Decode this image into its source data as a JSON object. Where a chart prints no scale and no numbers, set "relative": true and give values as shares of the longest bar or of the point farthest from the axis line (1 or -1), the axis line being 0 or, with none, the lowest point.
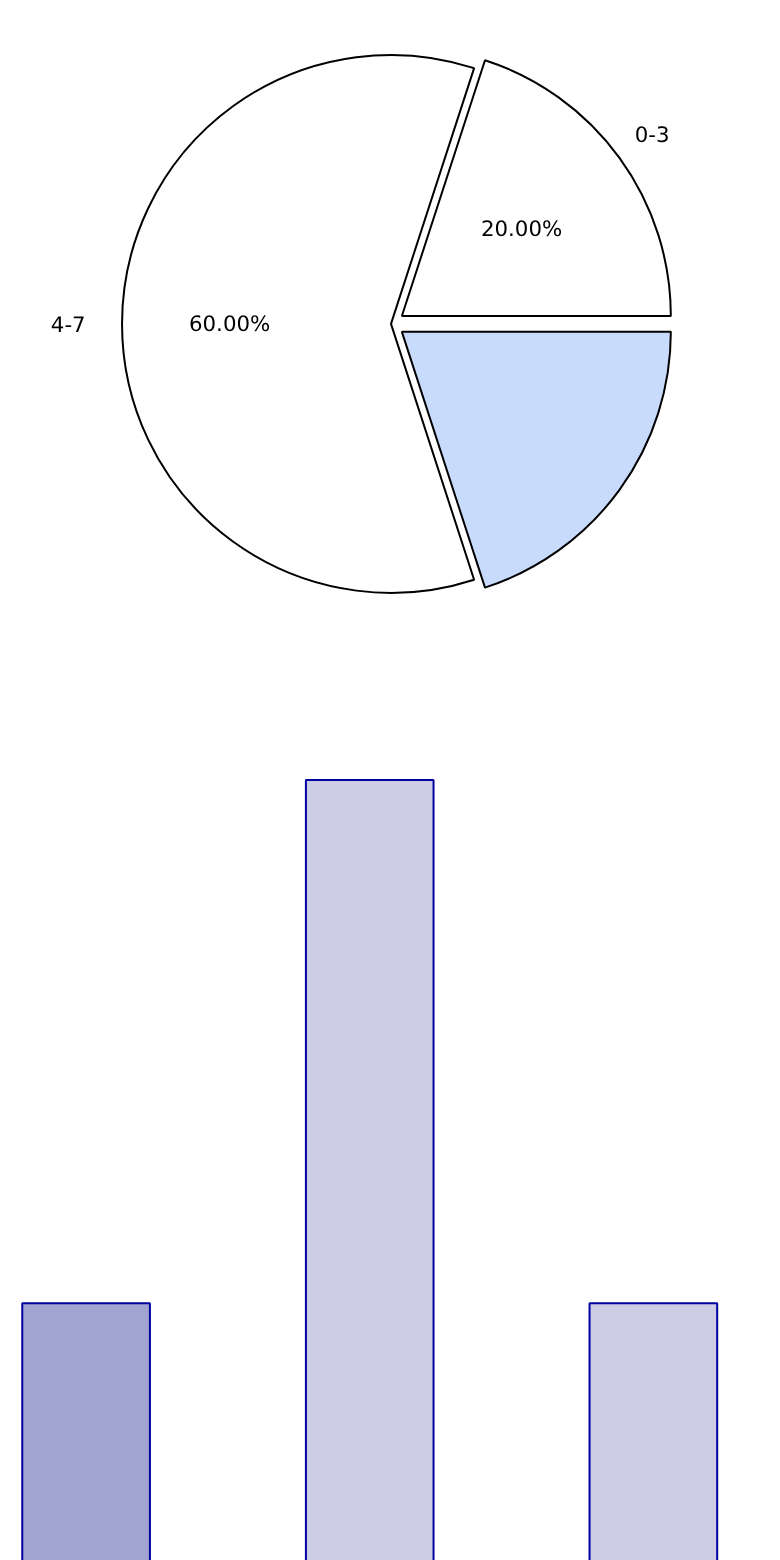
{
  "chart_data": [
    {
      "type": "pie",
      "categories": [
        "0-3",
        null,
        "4-7"
      ],
      "values": [
        20,
        20,
        60
      ],
      "colors": [
        "#ffffff",
        "#c9dbfc",
        "#ffffff"
      ],
      "value_labels": [
        "20.00%",
        null,
        "60.00%"
      ]
    },
    {
      "type": "bar",
      "relative": true,
      "categories": [
        null,
        null,
        null
      ],
      "values": [
        0.33,
        1,
        0.33
      ],
      "colors": [
        "#a3a5d1",
        "#cccce4",
        "#cccce4"
      ]
    }
  ]
}
